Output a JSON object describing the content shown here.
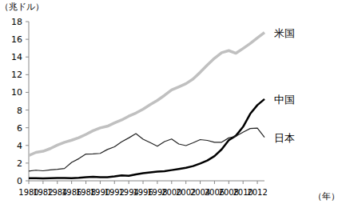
{
  "chart_data": {
    "type": "line",
    "y_label": "（兆ドル）",
    "x_label": "（年）",
    "x": [
      1980,
      1981,
      1982,
      1983,
      1984,
      1985,
      1986,
      1987,
      1988,
      1989,
      1990,
      1991,
      1992,
      1993,
      1994,
      1995,
      1996,
      1997,
      1998,
      1999,
      2000,
      2001,
      2002,
      2003,
      2004,
      2005,
      2006,
      2007,
      2008,
      2009,
      2010,
      2011,
      2012,
      2013
    ],
    "series": [
      {
        "name": "米国",
        "color": "#c0c0c0",
        "values": [
          2.86,
          3.21,
          3.34,
          3.64,
          4.04,
          4.35,
          4.59,
          4.87,
          5.25,
          5.66,
          5.98,
          6.17,
          6.54,
          6.88,
          7.31,
          7.66,
          8.1,
          8.61,
          9.09,
          9.66,
          10.28,
          10.62,
          10.98,
          11.51,
          12.27,
          13.09,
          13.86,
          14.48,
          14.72,
          14.42,
          14.96,
          15.52,
          16.16,
          16.77
        ]
      },
      {
        "name": "中国",
        "color": "#000000",
        "values": [
          0.3,
          0.29,
          0.28,
          0.3,
          0.31,
          0.31,
          0.3,
          0.33,
          0.41,
          0.46,
          0.4,
          0.41,
          0.49,
          0.62,
          0.56,
          0.73,
          0.86,
          0.96,
          1.03,
          1.09,
          1.21,
          1.34,
          1.47,
          1.66,
          1.96,
          2.29,
          2.79,
          3.55,
          4.59,
          5.1,
          6.1,
          7.57,
          8.56,
          9.24
        ]
      },
      {
        "name": "日本",
        "color": "#222222",
        "values": [
          1.09,
          1.2,
          1.13,
          1.24,
          1.3,
          1.39,
          2.08,
          2.5,
          3.02,
          3.05,
          3.1,
          3.54,
          3.85,
          4.41,
          4.85,
          5.33,
          4.71,
          4.32,
          3.91,
          4.43,
          4.73,
          4.16,
          3.98,
          4.3,
          4.66,
          4.57,
          4.36,
          4.36,
          4.85,
          5.04,
          5.5,
          5.91,
          5.95,
          4.92
        ]
      }
    ],
    "xlim": [
      1980,
      2013
    ],
    "xticks": [
      1980,
      1982,
      1984,
      1986,
      1988,
      1990,
      1992,
      1994,
      1996,
      1998,
      2000,
      2002,
      2004,
      2006,
      2008,
      2010,
      2012
    ],
    "ylim": [
      0,
      18
    ],
    "yticks": [
      0,
      2,
      4,
      6,
      8,
      10,
      12,
      14,
      16,
      18
    ],
    "grid": false
  }
}
